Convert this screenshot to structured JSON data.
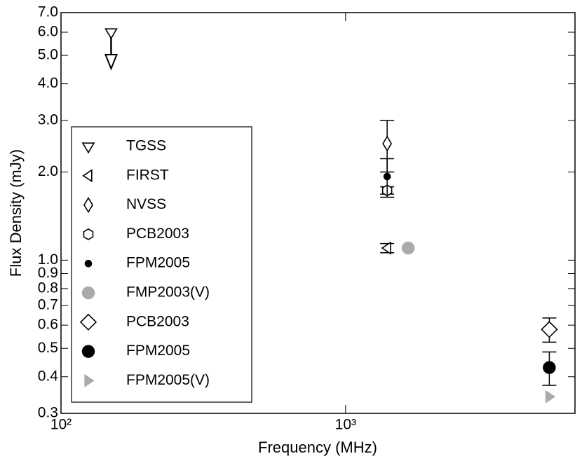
{
  "chart_data": {
    "type": "scatter",
    "xlabel": "Frequency (MHz)",
    "ylabel": "Flux Density (mJy)",
    "xscale": "log",
    "yscale": "log",
    "xlim": [
      100,
      6400
    ],
    "ylim": [
      0.3,
      7.0
    ],
    "xticks": [
      {
        "value": 100,
        "label": "10²"
      },
      {
        "value": 1000,
        "label": "10³"
      }
    ],
    "yticks": [
      {
        "value": 0.3,
        "label": "0.3"
      },
      0.4,
      0.5,
      0.6,
      0.7,
      0.8,
      0.9,
      {
        "value": 1.0,
        "label": "1.0"
      },
      {
        "value": 2.0,
        "label": "2.0"
      },
      {
        "value": 3.0,
        "label": "3.0"
      },
      {
        "value": 4.0,
        "label": "4.0"
      },
      {
        "value": 5.0,
        "label": "5.0"
      },
      {
        "value": 6.0,
        "label": "6.0"
      },
      {
        "value": 7.0,
        "label": "7.0"
      }
    ],
    "legend": "center left",
    "series": [
      {
        "name": "TGSS",
        "color": "#000000",
        "marker": "v",
        "filled": false,
        "upper_limit": true,
        "x": [
          150
        ],
        "values": [
          6.0
        ]
      },
      {
        "name": "FIRST",
        "color": "#000000",
        "marker": "<",
        "filled": false,
        "x": [
          1400
        ],
        "values": [
          1.1
        ],
        "errors": [
          0.04
        ]
      },
      {
        "name": "NVSS",
        "color": "#000000",
        "marker": "d",
        "filled": false,
        "x": [
          1400
        ],
        "values": [
          2.5
        ],
        "errors": [
          0.5
        ]
      },
      {
        "name": "PCB2003",
        "color": "#000000",
        "marker": "h",
        "filled": false,
        "x": [
          1400
        ],
        "values": [
          1.73
        ],
        "errors": [
          0.05
        ]
      },
      {
        "name": "FPM2005",
        "color": "#000000",
        "marker": ".",
        "filled": true,
        "x": [
          1400
        ],
        "values": [
          1.93
        ],
        "errors": [
          0.29
        ]
      },
      {
        "name": "FMP2003(V)",
        "color": "#aaaaaa",
        "marker": "o",
        "filled": true,
        "x": [
          1660
        ],
        "values": [
          1.1
        ]
      },
      {
        "name": "PCB2003",
        "color": "#000000",
        "marker": "D",
        "filled": false,
        "x": [
          5200
        ],
        "values": [
          0.58
        ],
        "errors": [
          0.055
        ]
      },
      {
        "name": "FPM2005",
        "color": "#000000",
        "marker": "o",
        "filled": true,
        "x": [
          5200
        ],
        "values": [
          0.43
        ],
        "errors": [
          0.056
        ]
      },
      {
        "name": "FPM2005(V)",
        "color": "#aaaaaa",
        "marker": ">",
        "filled": true,
        "x": [
          5200
        ],
        "values": [
          0.342
        ]
      }
    ]
  }
}
